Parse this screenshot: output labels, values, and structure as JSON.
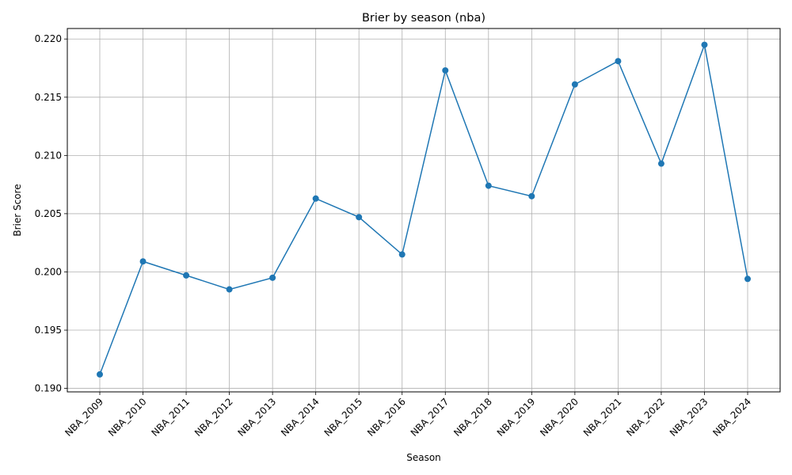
{
  "chart_data": {
    "type": "line",
    "title": "Brier by season (nba)",
    "xlabel": "Season",
    "ylabel": "Brier Score",
    "categories": [
      "NBA_2009",
      "NBA_2010",
      "NBA_2011",
      "NBA_2012",
      "NBA_2013",
      "NBA_2014",
      "NBA_2015",
      "NBA_2016",
      "NBA_2017",
      "NBA_2018",
      "NBA_2019",
      "NBA_2020",
      "NBA_2021",
      "NBA_2022",
      "NBA_2023",
      "NBA_2024"
    ],
    "series": [
      {
        "values": [
          0.1912,
          0.2009,
          0.1997,
          0.1985,
          0.1995,
          0.2063,
          0.2047,
          0.2015,
          0.2173,
          0.2074,
          0.2065,
          0.2161,
          0.2181,
          0.2093,
          0.2195,
          0.1994
        ],
        "color": "#1f77b4",
        "marker": "circle"
      }
    ],
    "ylim": [
      0.1897,
      0.2209
    ],
    "yticks": [
      "0.190",
      "0.195",
      "0.200",
      "0.205",
      "0.210",
      "0.215",
      "0.220"
    ],
    "grid": true,
    "xtick_rotation": 45
  }
}
